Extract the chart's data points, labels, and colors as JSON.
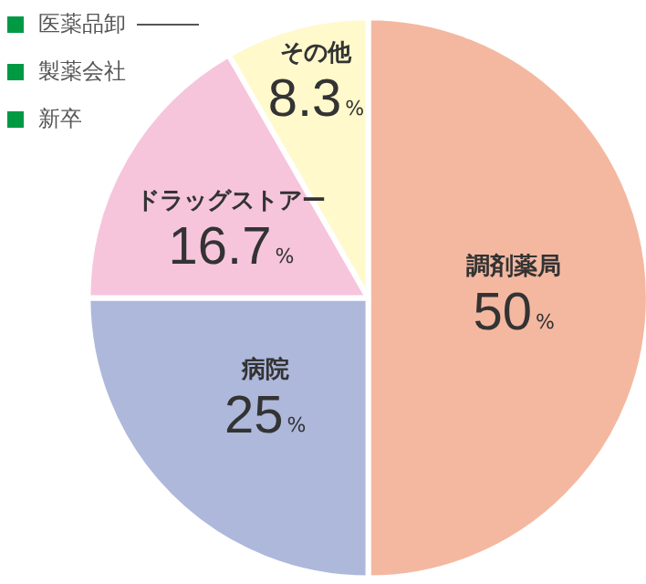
{
  "chart_data": {
    "type": "pie",
    "categories": [
      "調剤薬局",
      "病院",
      "ドラッグストアー",
      "その他"
    ],
    "values": [
      50,
      25,
      16.7,
      8.3
    ],
    "colors": [
      "#f4b8a0",
      "#adb8db",
      "#f6c5dc",
      "#fff9cc"
    ],
    "value_labels": [
      "50%",
      "25%",
      "16.7%",
      "8.3%"
    ],
    "annotations": [
      "医薬品卸",
      "製薬会社",
      "新卒"
    ]
  }
}
